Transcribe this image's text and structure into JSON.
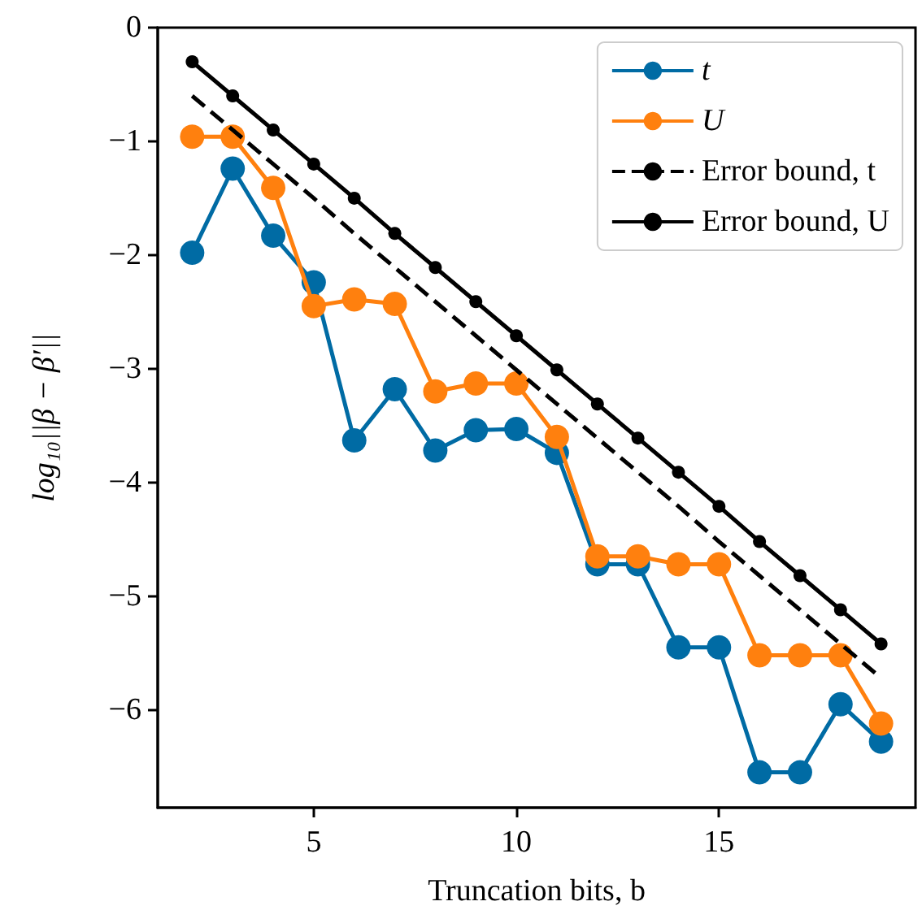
{
  "chart_data": {
    "type": "line",
    "xlabel": "Truncation bits, b",
    "ylabel": "log₁₀||β − β′||",
    "x": [
      2,
      3,
      4,
      5,
      6,
      7,
      8,
      9,
      10,
      11,
      12,
      13,
      14,
      15,
      16,
      17,
      18,
      19
    ],
    "series": [
      {
        "name": "t",
        "color": "#006ba4",
        "marker": "circle",
        "line_style": "solid",
        "values": [
          -1.98,
          -1.24,
          -1.83,
          -2.24,
          -3.63,
          -3.18,
          -3.72,
          -3.54,
          -3.53,
          -3.74,
          -4.72,
          -4.72,
          -5.45,
          -5.45,
          -6.55,
          -6.55,
          -5.95,
          -6.28
        ]
      },
      {
        "name": "U",
        "color": "#ff800e",
        "marker": "circle",
        "line_style": "solid",
        "values": [
          -0.96,
          -0.96,
          -1.41,
          -2.45,
          -2.39,
          -2.43,
          -3.2,
          -3.13,
          -3.13,
          -3.6,
          -4.65,
          -4.65,
          -4.72,
          -4.72,
          -5.52,
          -5.52,
          -5.52,
          -6.12
        ]
      },
      {
        "name": "Error bound, t",
        "color": "#000000",
        "marker": "none",
        "line_style": "dashed",
        "values": [
          -0.6,
          -0.9,
          -1.2,
          -1.5,
          -1.81,
          -2.11,
          -2.41,
          -2.71,
          -3.01,
          -3.31,
          -3.61,
          -3.91,
          -4.21,
          -4.52,
          -4.82,
          -5.12,
          -5.42,
          -5.72
        ]
      },
      {
        "name": "Error bound, U",
        "color": "#000000",
        "marker": "circle",
        "line_style": "solid",
        "values": [
          -0.3,
          -0.6,
          -0.9,
          -1.2,
          -1.5,
          -1.81,
          -2.11,
          -2.41,
          -2.71,
          -3.01,
          -3.31,
          -3.61,
          -3.91,
          -4.21,
          -4.52,
          -4.82,
          -5.12,
          -5.42
        ]
      }
    ],
    "xlim": [
      1.15,
      19.85
    ],
    "xticks": [
      5,
      10,
      15
    ],
    "ylim": [
      -6.86,
      0
    ],
    "yticks": [
      0,
      {
        "value": -1,
        "label": "−1"
      },
      {
        "value": -2,
        "label": "−2"
      },
      {
        "value": -3,
        "label": "−3"
      },
      {
        "value": -4,
        "label": "−4"
      },
      {
        "value": -5,
        "label": "−5"
      },
      {
        "value": -6,
        "label": "−6"
      }
    ],
    "grid": false,
    "legend": "top right"
  }
}
